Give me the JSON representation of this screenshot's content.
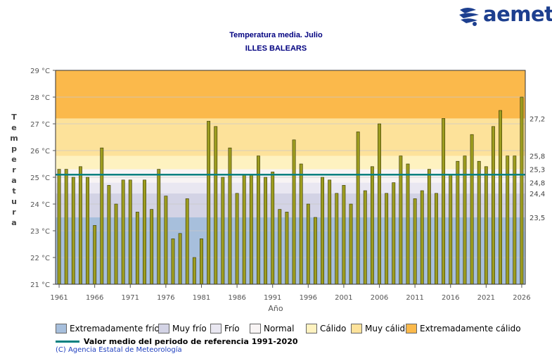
{
  "header": {
    "logo_text": "aemet",
    "title": "Temperatura media. Julio",
    "subtitle": "ILLES BALEARS"
  },
  "chart_data": {
    "type": "bar",
    "title": "Temperatura media. Julio",
    "subtitle": "ILLES BALEARS",
    "xlabel": "Año",
    "ylabel": "Temperatura",
    "ylim": [
      21,
      29
    ],
    "y_ticks": [
      "21 °C",
      "22 °C",
      "23 °C",
      "24 °C",
      "25 °C",
      "26 °C",
      "27 °C",
      "28 °C",
      "29 °C"
    ],
    "x_ticks": [
      "1961",
      "1966",
      "1971",
      "1976",
      "1981",
      "1986",
      "1991",
      "1996",
      "2001",
      "2006",
      "2011",
      "2016",
      "2021",
      "2026"
    ],
    "x": [
      1961,
      1962,
      1963,
      1964,
      1965,
      1966,
      1967,
      1968,
      1969,
      1970,
      1971,
      1972,
      1973,
      1974,
      1975,
      1976,
      1977,
      1978,
      1979,
      1980,
      1981,
      1982,
      1983,
      1984,
      1985,
      1986,
      1987,
      1988,
      1989,
      1990,
      1991,
      1992,
      1993,
      1994,
      1995,
      1996,
      1997,
      1998,
      1999,
      2000,
      2001,
      2002,
      2003,
      2004,
      2005,
      2006,
      2007,
      2008,
      2009,
      2010,
      2011,
      2012,
      2013,
      2014,
      2015,
      2016,
      2017,
      2018,
      2019,
      2020,
      2021,
      2022,
      2023,
      2024,
      2025,
      2026
    ],
    "values": [
      25.3,
      25.3,
      25.0,
      25.4,
      25.0,
      23.2,
      26.1,
      24.7,
      24.0,
      24.9,
      24.9,
      23.7,
      24.9,
      23.8,
      25.3,
      24.3,
      22.7,
      22.9,
      24.2,
      22.0,
      22.7,
      27.1,
      26.9,
      25.0,
      26.1,
      24.4,
      25.1,
      25.1,
      25.8,
      25.0,
      25.2,
      23.8,
      23.7,
      26.4,
      25.5,
      24.0,
      23.5,
      25.0,
      24.9,
      24.4,
      24.7,
      24.0,
      26.7,
      24.5,
      25.4,
      27.0,
      24.4,
      24.8,
      25.8,
      25.5,
      24.2,
      24.5,
      25.3,
      24.4,
      27.2,
      25.1,
      25.6,
      25.8,
      26.6,
      25.6,
      25.4,
      26.9,
      27.5,
      25.8,
      25.8,
      28.0
    ],
    "reference_mean": 25.1,
    "category_thresholds": {
      "Extremadamente frío": 23.5,
      "Muy frío": 24.4,
      "Frío": 24.8,
      "Normal": 25.3,
      "Cálido": 25.8,
      "Muy cálido": 27.2
    },
    "right_axis_labels": [
      "27,2",
      "25,8",
      "25,3",
      "24,8",
      "24,4",
      "23,5"
    ],
    "bands": [
      {
        "name": "Extremadamente frío",
        "color": "#a7bfdc"
      },
      {
        "name": "Muy frío",
        "color": "#d3d3e5"
      },
      {
        "name": "Frío",
        "color": "#e9e7f1"
      },
      {
        "name": "Normal",
        "color": "#f8f4f4"
      },
      {
        "name": "Cálido",
        "color": "#fef2c0"
      },
      {
        "name": "Muy cálido",
        "color": "#fde29a"
      },
      {
        "name": "Extremadamente cálido",
        "color": "#fbb94b"
      }
    ],
    "bar_color": "#9c9c1f",
    "reference_line_color": "#008080",
    "grid": true,
    "legend_position": "bottom"
  },
  "legend": {
    "items": [
      {
        "label": "Extremadamente frío",
        "color": "#a7bfdc"
      },
      {
        "label": "Muy frío",
        "color": "#d3d3e5"
      },
      {
        "label": "Frío",
        "color": "#e9e7f1"
      },
      {
        "label": "Normal",
        "color": "#f8f4f4"
      },
      {
        "label": "Cálido",
        "color": "#fef2c0"
      },
      {
        "label": "Muy cálido",
        "color": "#fde29a"
      },
      {
        "label": "Extremadamente cálido",
        "color": "#fbb94b"
      }
    ],
    "reference_label": "Valor medio del periodo de referencia 1991-2020"
  },
  "footer": {
    "credit": "(C) Agencia Estatal de Meteorología"
  }
}
